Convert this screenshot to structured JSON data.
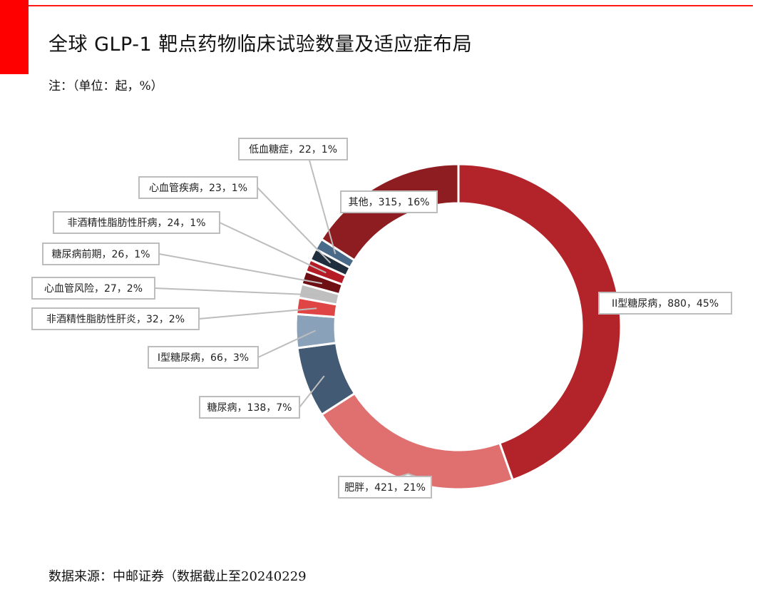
{
  "page": {
    "title": "全球 GLP-1 靶点药物临床试验数量及适应症布局",
    "note": "注：（单位：起，%）",
    "source": "数据来源：中邮证券（数据截止至20240229",
    "accent_color": "#ff0000"
  },
  "chart_data": {
    "type": "pie",
    "variant": "donut",
    "title": "",
    "legend": "none",
    "slices": [
      {
        "label": "II型糖尿病",
        "value": 880,
        "percent": 45,
        "color": "#b2242a"
      },
      {
        "label": "肥胖",
        "value": 421,
        "percent": 21,
        "color": "#e07070"
      },
      {
        "label": "糖尿病",
        "value": 138,
        "percent": 7,
        "color": "#435a74"
      },
      {
        "label": "I型糖尿病",
        "value": 66,
        "percent": 3,
        "color": "#8aa1ba"
      },
      {
        "label": "非酒精性脂肪性肝炎",
        "value": 32,
        "percent": 2,
        "color": "#e04545"
      },
      {
        "label": "心血管风险",
        "value": 27,
        "percent": 2,
        "color": "#bfbfbf"
      },
      {
        "label": "糖尿病前期",
        "value": 26,
        "percent": 1,
        "color": "#6e0f14"
      },
      {
        "label": "非酒精性脂肪性肝病",
        "value": 24,
        "percent": 1,
        "color": "#b51c26"
      },
      {
        "label": "心血管疾病",
        "value": 23,
        "percent": 1,
        "color": "#1f2e3d"
      },
      {
        "label": "低血糖症",
        "value": 22,
        "percent": 1,
        "color": "#4a6a8a"
      },
      {
        "label": "其他",
        "value": 315,
        "percent": 16,
        "color": "#8e1d22"
      }
    ]
  }
}
